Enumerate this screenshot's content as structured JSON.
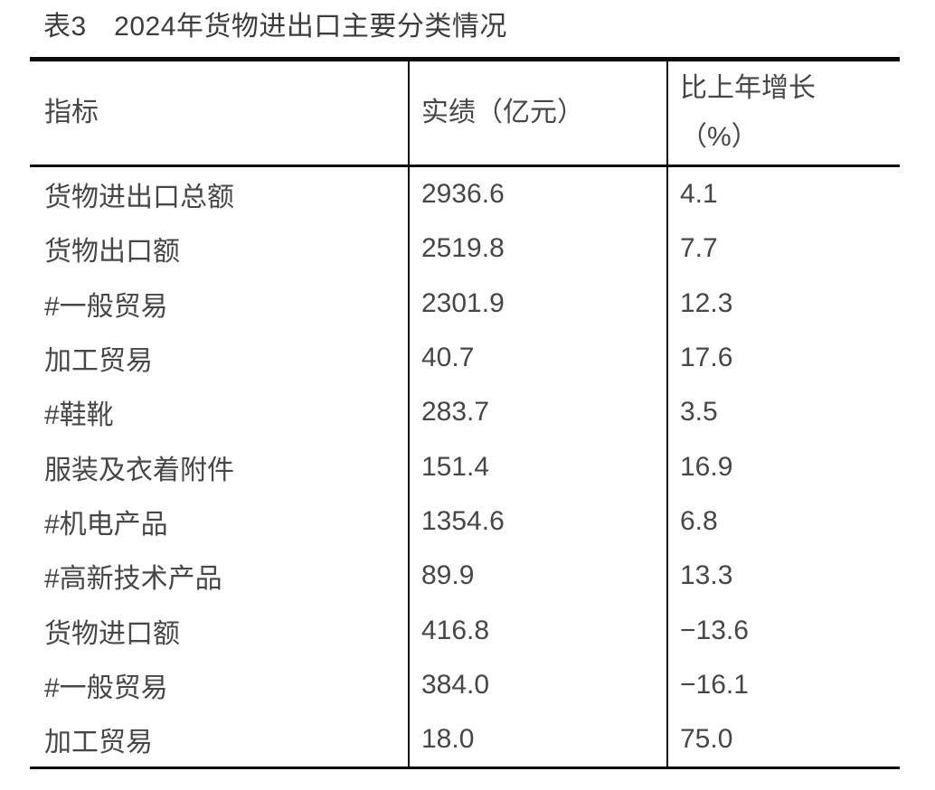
{
  "title": "表3　2024年货物进出口主要分类情况",
  "colors": {
    "border": "#0b0b0b",
    "text": "#474747",
    "title_text": "#3c3c3c",
    "background": "#ffffff"
  },
  "table": {
    "columns": [
      {
        "id": "indicator",
        "label": "指标"
      },
      {
        "id": "value",
        "label": "实绩（亿元）"
      },
      {
        "id": "growth",
        "label": "比上年增长",
        "label2": "（%）"
      }
    ],
    "rows": [
      {
        "indicator": "货物进出口总额",
        "value": "2936.6",
        "growth": "4.1"
      },
      {
        "indicator": "货物出口额",
        "value": "2519.8",
        "growth": "7.7"
      },
      {
        "indicator": "#一般贸易",
        "value": "2301.9",
        "growth": "12.3"
      },
      {
        "indicator": "加工贸易",
        "value": "40.7",
        "growth": "17.6"
      },
      {
        "indicator": "#鞋靴",
        "value": "283.7",
        "growth": "3.5"
      },
      {
        "indicator": "服装及衣着附件",
        "value": "151.4",
        "growth": "16.9"
      },
      {
        "indicator": "#机电产品",
        "value": "1354.6",
        "growth": "6.8"
      },
      {
        "indicator": "#高新技术产品",
        "value": "89.9",
        "growth": "13.3"
      },
      {
        "indicator": "货物进口额",
        "value": "416.8",
        "growth": "−13.6"
      },
      {
        "indicator": "#一般贸易",
        "value": "384.0",
        "growth": "−16.1"
      },
      {
        "indicator": "加工贸易",
        "value": "18.0",
        "growth": "75.0"
      }
    ]
  },
  "chart_data": {
    "type": "table",
    "title": "表3　2024年货物进出口主要分类情况",
    "columns": [
      "指标",
      "实绩（亿元）",
      "比上年增长（%）"
    ],
    "categories": [
      "货物进出口总额",
      "货物出口额",
      "#一般贸易",
      "加工贸易",
      "#鞋靴",
      "服装及衣着附件",
      "#机电产品",
      "#高新技术产品",
      "货物进口额",
      "#一般贸易",
      "加工贸易"
    ],
    "series": [
      {
        "name": "实绩（亿元）",
        "values": [
          2936.6,
          2519.8,
          2301.9,
          40.7,
          283.7,
          151.4,
          1354.6,
          89.9,
          416.8,
          384.0,
          18.0
        ]
      },
      {
        "name": "比上年增长（%）",
        "values": [
          4.1,
          7.7,
          12.3,
          17.6,
          3.5,
          16.9,
          6.8,
          13.3,
          -13.6,
          -16.1,
          75.0
        ]
      }
    ]
  }
}
